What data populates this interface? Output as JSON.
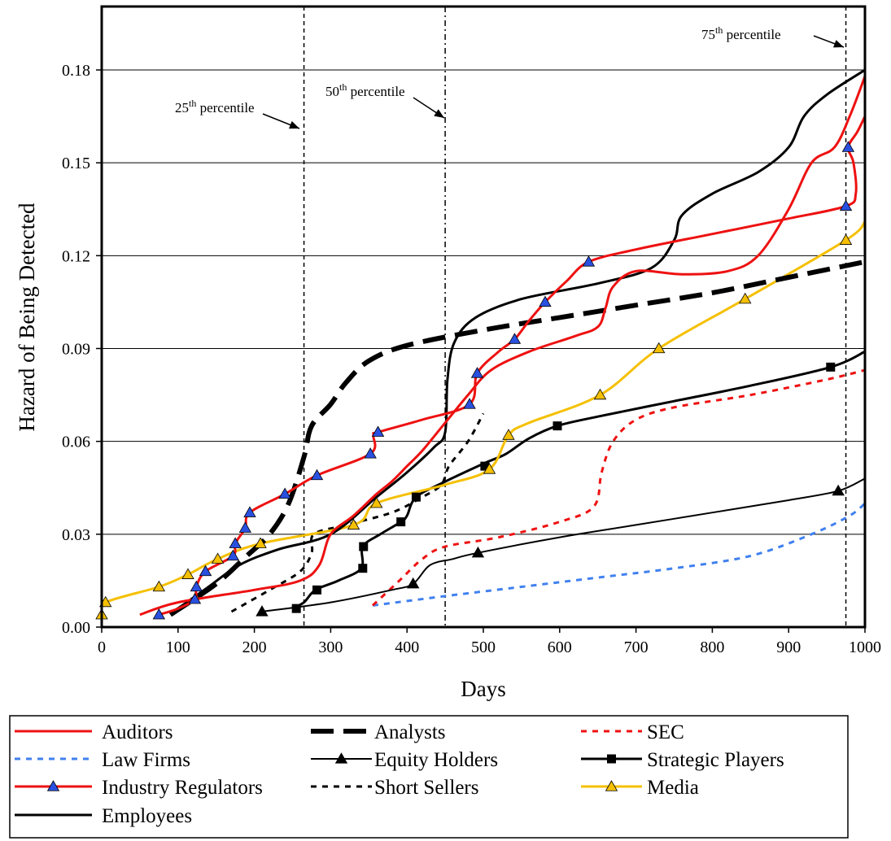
{
  "chart_data": {
    "type": "line",
    "xlabel": "Days",
    "ylabel": "Hazard of Being Detected",
    "xlim": [
      0,
      1000
    ],
    "ylim": [
      0,
      0.18
    ],
    "x_ticks": [
      "0",
      "100",
      "200",
      "300",
      "400",
      "500",
      "600",
      "700",
      "800",
      "900",
      "1000"
    ],
    "y_ticks": [
      "0.00",
      "0.03",
      "0.06",
      "0.09",
      "0.12",
      "0.15",
      "0.18"
    ],
    "grid": "horizontal",
    "legend_position": "bottom",
    "percentiles": [
      {
        "label_base": "25",
        "label_sup": "th",
        "label_rest": " percentile",
        "x": 265,
        "style": "dashed"
      },
      {
        "label_base": "50",
        "label_sup": "th",
        "label_rest": " percentile",
        "x": 450,
        "style": "dashdot"
      },
      {
        "label_base": "75",
        "label_sup": "th",
        "label_rest": " percentile",
        "x": 975,
        "style": "dashed"
      }
    ],
    "series": [
      {
        "name": "Auditors",
        "color": "#ee1111",
        "dash": "solid",
        "width": 3,
        "marker": "none",
        "points": [
          [
            50,
            0.004
          ],
          [
            100,
            0.008
          ],
          [
            200,
            0.012
          ],
          [
            260,
            0.015
          ],
          [
            285,
            0.02
          ],
          [
            300,
            0.03
          ],
          [
            330,
            0.036
          ],
          [
            360,
            0.043
          ],
          [
            380,
            0.047
          ],
          [
            400,
            0.052
          ],
          [
            420,
            0.057
          ],
          [
            450,
            0.066
          ],
          [
            480,
            0.075
          ],
          [
            510,
            0.083
          ],
          [
            560,
            0.089
          ],
          [
            620,
            0.094
          ],
          [
            650,
            0.097
          ],
          [
            660,
            0.103
          ],
          [
            670,
            0.11
          ],
          [
            700,
            0.115
          ],
          [
            760,
            0.114
          ],
          [
            820,
            0.115
          ],
          [
            860,
            0.12
          ],
          [
            900,
            0.135
          ],
          [
            930,
            0.15
          ],
          [
            960,
            0.155
          ],
          [
            980,
            0.165
          ],
          [
            1000,
            0.178
          ]
        ]
      },
      {
        "name": "Analysts",
        "color": "#000000",
        "dash": "28,12",
        "width": 6,
        "marker": "none",
        "points": [
          [
            90,
            0.004
          ],
          [
            150,
            0.014
          ],
          [
            190,
            0.023
          ],
          [
            220,
            0.03
          ],
          [
            245,
            0.04
          ],
          [
            265,
            0.055
          ],
          [
            275,
            0.065
          ],
          [
            300,
            0.072
          ],
          [
            320,
            0.079
          ],
          [
            350,
            0.086
          ],
          [
            400,
            0.091
          ],
          [
            500,
            0.096
          ],
          [
            600,
            0.1
          ],
          [
            700,
            0.104
          ],
          [
            800,
            0.108
          ],
          [
            900,
            0.113
          ],
          [
            1000,
            0.118
          ]
        ]
      },
      {
        "name": "SEC",
        "color": "#ee1111",
        "dash": "7,7",
        "width": 3,
        "marker": "none",
        "points": [
          [
            355,
            0.007
          ],
          [
            390,
            0.015
          ],
          [
            420,
            0.022
          ],
          [
            450,
            0.026
          ],
          [
            520,
            0.029
          ],
          [
            600,
            0.034
          ],
          [
            645,
            0.039
          ],
          [
            655,
            0.05
          ],
          [
            670,
            0.06
          ],
          [
            700,
            0.067
          ],
          [
            750,
            0.071
          ],
          [
            850,
            0.075
          ],
          [
            950,
            0.08
          ],
          [
            1000,
            0.083
          ]
        ]
      },
      {
        "name": "Law Firms",
        "color": "#4080f0",
        "dash": "7,7",
        "width": 3,
        "marker": "none",
        "points": [
          [
            355,
            0.007
          ],
          [
            450,
            0.01
          ],
          [
            550,
            0.013
          ],
          [
            650,
            0.016
          ],
          [
            750,
            0.019
          ],
          [
            850,
            0.023
          ],
          [
            930,
            0.03
          ],
          [
            980,
            0.036
          ],
          [
            1000,
            0.04
          ]
        ]
      },
      {
        "name": "Equity Holders",
        "color": "#000000",
        "dash": "solid",
        "width": 2,
        "marker": "triangle",
        "marker_fill": "#000000",
        "points": [
          [
            210,
            0.005
          ],
          [
            300,
            0.008
          ],
          [
            380,
            0.012
          ],
          [
            408,
            0.014
          ],
          [
            430,
            0.02
          ],
          [
            460,
            0.022
          ],
          [
            493,
            0.024
          ],
          [
            600,
            0.029
          ],
          [
            700,
            0.033
          ],
          [
            800,
            0.037
          ],
          [
            900,
            0.041
          ],
          [
            965,
            0.044
          ],
          [
            1000,
            0.048
          ]
        ],
        "marker_points": [
          [
            210,
            0.005
          ],
          [
            408,
            0.014
          ],
          [
            493,
            0.024
          ],
          [
            965,
            0.044
          ]
        ]
      },
      {
        "name": "Strategic Players",
        "color": "#000000",
        "dash": "solid",
        "width": 3,
        "marker": "square",
        "marker_fill": "#000000",
        "points": [
          [
            250,
            0.006
          ],
          [
            265,
            0.008
          ],
          [
            280,
            0.012
          ],
          [
            310,
            0.015
          ],
          [
            340,
            0.019
          ],
          [
            342,
            0.026
          ],
          [
            365,
            0.03
          ],
          [
            392,
            0.034
          ],
          [
            400,
            0.036
          ],
          [
            412,
            0.042
          ],
          [
            450,
            0.047
          ],
          [
            502,
            0.053
          ],
          [
            530,
            0.056
          ],
          [
            560,
            0.061
          ],
          [
            597,
            0.065
          ],
          [
            650,
            0.068
          ],
          [
            750,
            0.073
          ],
          [
            850,
            0.078
          ],
          [
            955,
            0.084
          ],
          [
            1000,
            0.089
          ]
        ],
        "marker_points": [
          [
            255,
            0.006
          ],
          [
            282,
            0.012
          ],
          [
            342,
            0.019
          ],
          [
            343,
            0.026
          ],
          [
            392,
            0.034
          ],
          [
            412,
            0.042
          ],
          [
            502,
            0.052
          ],
          [
            597,
            0.065
          ],
          [
            955,
            0.084
          ]
        ]
      },
      {
        "name": "Industry Regulators",
        "color": "#ee1111",
        "dash": "solid",
        "width": 3,
        "marker": "triangle",
        "marker_fill": "#2a50e0",
        "points": [
          [
            75,
            0.004
          ],
          [
            100,
            0.006
          ],
          [
            122,
            0.009
          ],
          [
            124,
            0.013
          ],
          [
            136,
            0.018
          ],
          [
            172,
            0.023
          ],
          [
            175,
            0.027
          ],
          [
            188,
            0.032
          ],
          [
            194,
            0.037
          ],
          [
            240,
            0.043
          ],
          [
            282,
            0.049
          ],
          [
            352,
            0.056
          ],
          [
            356,
            0.062
          ],
          [
            362,
            0.063
          ],
          [
            420,
            0.067
          ],
          [
            482,
            0.072
          ],
          [
            492,
            0.082
          ],
          [
            520,
            0.089
          ],
          [
            541,
            0.093
          ],
          [
            560,
            0.099
          ],
          [
            581,
            0.105
          ],
          [
            610,
            0.112
          ],
          [
            638,
            0.118
          ],
          [
            700,
            0.122
          ],
          [
            800,
            0.127
          ],
          [
            900,
            0.132
          ],
          [
            975,
            0.136
          ],
          [
            988,
            0.14
          ],
          [
            985,
            0.15
          ],
          [
            978,
            0.155
          ],
          [
            990,
            0.16
          ],
          [
            1000,
            0.165
          ]
        ],
        "marker_points": [
          [
            75,
            0.004
          ],
          [
            122,
            0.009
          ],
          [
            124,
            0.013
          ],
          [
            136,
            0.018
          ],
          [
            172,
            0.023
          ],
          [
            175,
            0.027
          ],
          [
            188,
            0.032
          ],
          [
            194,
            0.037
          ],
          [
            240,
            0.043
          ],
          [
            282,
            0.049
          ],
          [
            352,
            0.056
          ],
          [
            362,
            0.063
          ],
          [
            482,
            0.072
          ],
          [
            492,
            0.082
          ],
          [
            541,
            0.093
          ],
          [
            581,
            0.105
          ],
          [
            638,
            0.118
          ],
          [
            975,
            0.136
          ],
          [
            978,
            0.155
          ]
        ]
      },
      {
        "name": "Short Sellers",
        "color": "#000000",
        "dash": "7,7",
        "width": 3,
        "marker": "none",
        "points": [
          [
            170,
            0.005
          ],
          [
            220,
            0.012
          ],
          [
            260,
            0.018
          ],
          [
            275,
            0.024
          ],
          [
            278,
            0.03
          ],
          [
            320,
            0.033
          ],
          [
            380,
            0.037
          ],
          [
            420,
            0.042
          ],
          [
            445,
            0.046
          ],
          [
            455,
            0.052
          ],
          [
            480,
            0.06
          ],
          [
            500,
            0.069
          ]
        ]
      },
      {
        "name": "Media",
        "color": "#f5c000",
        "dash": "solid",
        "width": 3,
        "marker": "triangle",
        "marker_fill": "#f5c000",
        "points": [
          [
            0,
            0.004
          ],
          [
            5,
            0.008
          ],
          [
            75,
            0.013
          ],
          [
            113,
            0.017
          ],
          [
            152,
            0.022
          ],
          [
            208,
            0.027
          ],
          [
            330,
            0.033
          ],
          [
            360,
            0.04
          ],
          [
            450,
            0.046
          ],
          [
            508,
            0.051
          ],
          [
            533,
            0.062
          ],
          [
            560,
            0.066
          ],
          [
            653,
            0.075
          ],
          [
            730,
            0.09
          ],
          [
            843,
            0.106
          ],
          [
            975,
            0.125
          ],
          [
            1000,
            0.131
          ]
        ],
        "marker_points": [
          [
            0,
            0.004
          ],
          [
            5,
            0.008
          ],
          [
            75,
            0.013
          ],
          [
            113,
            0.017
          ],
          [
            152,
            0.022
          ],
          [
            208,
            0.027
          ],
          [
            330,
            0.033
          ],
          [
            360,
            0.04
          ],
          [
            508,
            0.051
          ],
          [
            533,
            0.062
          ],
          [
            653,
            0.075
          ],
          [
            730,
            0.09
          ],
          [
            843,
            0.106
          ],
          [
            975,
            0.125
          ]
        ]
      },
      {
        "name": "Employees",
        "color": "#000000",
        "dash": "solid",
        "width": 3,
        "marker": "none",
        "points": [
          [
            100,
            0.006
          ],
          [
            140,
            0.013
          ],
          [
            180,
            0.02
          ],
          [
            230,
            0.025
          ],
          [
            300,
            0.03
          ],
          [
            360,
            0.042
          ],
          [
            400,
            0.05
          ],
          [
            435,
            0.058
          ],
          [
            450,
            0.063
          ],
          [
            453,
            0.08
          ],
          [
            462,
            0.092
          ],
          [
            490,
            0.1
          ],
          [
            550,
            0.106
          ],
          [
            650,
            0.111
          ],
          [
            720,
            0.116
          ],
          [
            750,
            0.125
          ],
          [
            760,
            0.133
          ],
          [
            800,
            0.14
          ],
          [
            860,
            0.147
          ],
          [
            900,
            0.155
          ],
          [
            920,
            0.165
          ],
          [
            950,
            0.172
          ],
          [
            1000,
            0.18
          ]
        ]
      }
    ]
  }
}
